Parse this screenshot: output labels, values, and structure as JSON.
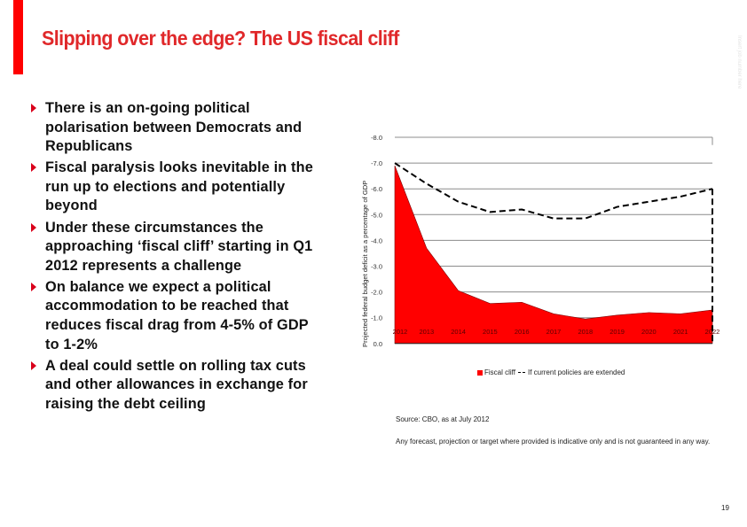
{
  "slide": {
    "title": "Slipping over the edge? The US fiscal cliff",
    "job_number_placeholder": "Insert job number here",
    "page_number": "19",
    "accent_color": "#ff0000",
    "title_color": "#e0282a"
  },
  "bullets": [
    {
      "text": "There is an on-going political polarisation between Democrats and Republicans"
    },
    {
      "text": "Fiscal paralysis looks inevitable in the run up to elections and potentially beyond"
    },
    {
      "text": "Under these circumstances the approaching ‘fiscal cliff’ starting in Q1 2012 represents a challenge"
    },
    {
      "text": "On balance we expect a political accommodation to be reached that reduces fiscal drag from 4-5% of GDP to 1-2%"
    },
    {
      "text": "A deal could settle on rolling tax cuts and other allowances in exchange for raising the debt ceiling"
    }
  ],
  "chart_data": {
    "type": "area",
    "title": "",
    "xlabel": "",
    "ylabel": "Projected federal budget deficit as a percentage of GDP",
    "x": [
      "2012",
      "2013",
      "2014",
      "2015",
      "2016",
      "2017",
      "2018",
      "2019",
      "2020",
      "2021",
      "2022"
    ],
    "x_tick_labels": [
      "2012",
      "2013",
      "2014",
      "2015",
      "2016",
      "2017",
      "2018",
      "2019",
      "2020",
      "2021",
      "2022"
    ],
    "y_tick_labels": [
      "-8.0",
      "-7.0",
      "-6.0",
      "-5.0",
      "-4.0",
      "-3.0",
      "-2.0",
      "-1.0",
      "0.0"
    ],
    "ylim": [
      0,
      -8
    ],
    "grid": true,
    "legend_position": "bottom",
    "series": [
      {
        "name": "Fiscal cliff",
        "style": "filled-area",
        "color": "#ff0000",
        "values": [
          -6.9,
          -3.7,
          -2.05,
          -1.55,
          -1.6,
          -1.15,
          -0.95,
          -1.1,
          -1.2,
          -1.15,
          -1.3
        ]
      },
      {
        "name": "If current policies are extended",
        "style": "dashed-line",
        "color": "#000000",
        "values": [
          -7.0,
          -6.2,
          -5.5,
          -5.1,
          -5.2,
          -4.85,
          -4.85,
          -5.3,
          -5.5,
          -5.7,
          -6.0
        ]
      }
    ]
  },
  "legend": {
    "items": [
      "Fiscal cliff",
      "If current policies are extended"
    ]
  },
  "source": "Source: CBO, as at July 2012",
  "disclaimer": "Any forecast, projection or target where provided is indicative only and is not guaranteed in any way."
}
